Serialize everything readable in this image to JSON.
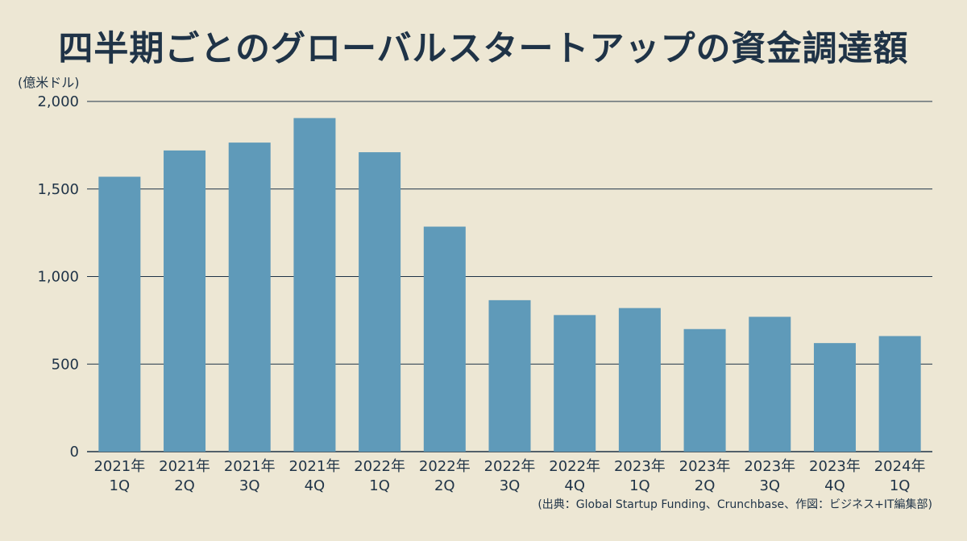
{
  "colors": {
    "background": "#ede7d4",
    "bar": "#5f9ab9",
    "text": "#1f3347",
    "grid": "#1f3347"
  },
  "chart_data": {
    "type": "bar",
    "title": "四半期ごとのグローバルスタートアップの資金調達額",
    "y_unit": "(億米ドル)",
    "source": "(出典：Global Startup Funding、Crunchbase、作図：ビジネス+IT編集部)",
    "categories": [
      [
        "2021年",
        "1Q"
      ],
      [
        "2021年",
        "2Q"
      ],
      [
        "2021年",
        "3Q"
      ],
      [
        "2021年",
        "4Q"
      ],
      [
        "2022年",
        "1Q"
      ],
      [
        "2022年",
        "2Q"
      ],
      [
        "2022年",
        "3Q"
      ],
      [
        "2022年",
        "4Q"
      ],
      [
        "2023年",
        "1Q"
      ],
      [
        "2023年",
        "2Q"
      ],
      [
        "2023年",
        "3Q"
      ],
      [
        "2023年",
        "4Q"
      ],
      [
        "2024年",
        "1Q"
      ]
    ],
    "values": [
      1570,
      1720,
      1765,
      1905,
      1710,
      1285,
      865,
      780,
      820,
      700,
      770,
      620,
      660
    ],
    "ylim": [
      0,
      2000
    ],
    "yticks": [
      0,
      500,
      1000,
      1500,
      2000
    ],
    "ytick_labels": [
      "0",
      "500",
      "1,000",
      "1,500",
      "2,000"
    ],
    "grid": true
  }
}
